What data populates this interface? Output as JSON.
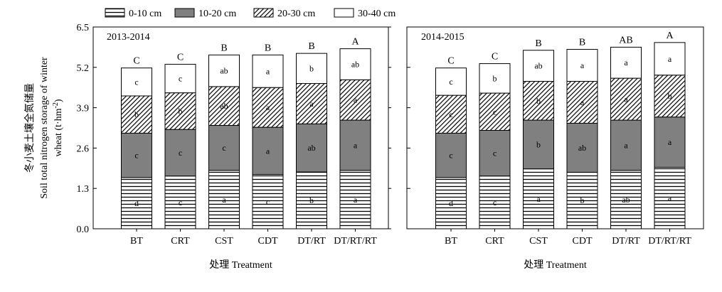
{
  "chart_data": {
    "type": "bar",
    "stacked": true,
    "ylabel": "冬小麦土壤全氮储量 Soil total nitrogen storage of winter wheat (t·hm⁻²)",
    "ylabel_lines": [
      "冬小麦土壤全氮储量",
      "Soil total nitrogen storage of winter",
      "wheat (t·hm"
    ],
    "ylabel_sup": "-2",
    "ylabel_close": ")",
    "xlabel": "处理 Treatment",
    "ylim": [
      0,
      6.5
    ],
    "yticks": [
      "0.0",
      "1.3",
      "2.6",
      "3.9",
      "5.2",
      "6.5"
    ],
    "categories": [
      "BT",
      "CRT",
      "CST",
      "CDT",
      "DT/RT",
      "DT/RT/RT"
    ],
    "legend": [
      {
        "name": "0-10 cm",
        "pattern": "horizontal"
      },
      {
        "name": "10-20 cm",
        "pattern": "solid-gray"
      },
      {
        "name": "20-30 cm",
        "pattern": "diagonal"
      },
      {
        "name": "30-40 cm",
        "pattern": "white"
      }
    ],
    "panels": [
      {
        "title": "2013-2014",
        "series": [
          {
            "name": "0-10 cm",
            "values": [
              1.65,
              1.7,
              1.88,
              1.75,
              1.83,
              1.88
            ],
            "letters": [
              "d",
              "c",
              "a",
              "c",
              "b",
              "a"
            ]
          },
          {
            "name": "10-20 cm",
            "values": [
              1.43,
              1.5,
              1.45,
              1.52,
              1.55,
              1.62
            ],
            "letters": [
              "c",
              "c",
              "c",
              "a",
              "ab",
              "a"
            ]
          },
          {
            "name": "20-30 cm",
            "values": [
              1.2,
              1.18,
              1.25,
              1.28,
              1.3,
              1.3
            ],
            "letters": [
              "b",
              "b",
              "ab",
              "a",
              "a",
              "a"
            ]
          },
          {
            "name": "30-40 cm",
            "values": [
              0.9,
              0.92,
              1.02,
              1.05,
              0.97,
              1.0
            ],
            "letters": [
              "c",
              "c",
              "ab",
              "a",
              "b",
              "ab"
            ]
          }
        ],
        "totals_letters": [
          "C",
          "C",
          "B",
          "B",
          "B",
          "A"
        ]
      },
      {
        "title": "2014-2015",
        "series": [
          {
            "name": "0-10 cm",
            "values": [
              1.65,
              1.7,
              1.93,
              1.82,
              1.88,
              1.98
            ],
            "letters": [
              "d",
              "c",
              "a",
              "b",
              "ab",
              "a"
            ]
          },
          {
            "name": "10-20 cm",
            "values": [
              1.43,
              1.47,
              1.57,
              1.58,
              1.62,
              1.62
            ],
            "letters": [
              "c",
              "c",
              "b",
              "ab",
              "a",
              "a"
            ]
          },
          {
            "name": "20-30 cm",
            "values": [
              1.22,
              1.2,
              1.25,
              1.35,
              1.35,
              1.35
            ],
            "letters": [
              "c",
              "c",
              "b",
              "a",
              "a",
              "b"
            ]
          },
          {
            "name": "30-40 cm",
            "values": [
              0.88,
              0.95,
              1.0,
              1.03,
              1.0,
              1.05
            ],
            "letters": [
              "c",
              "b",
              "ab",
              "a",
              "a",
              "a"
            ]
          }
        ],
        "totals_letters": [
          "C",
          "C",
          "B",
          "B",
          "AB",
          "A"
        ]
      }
    ]
  }
}
